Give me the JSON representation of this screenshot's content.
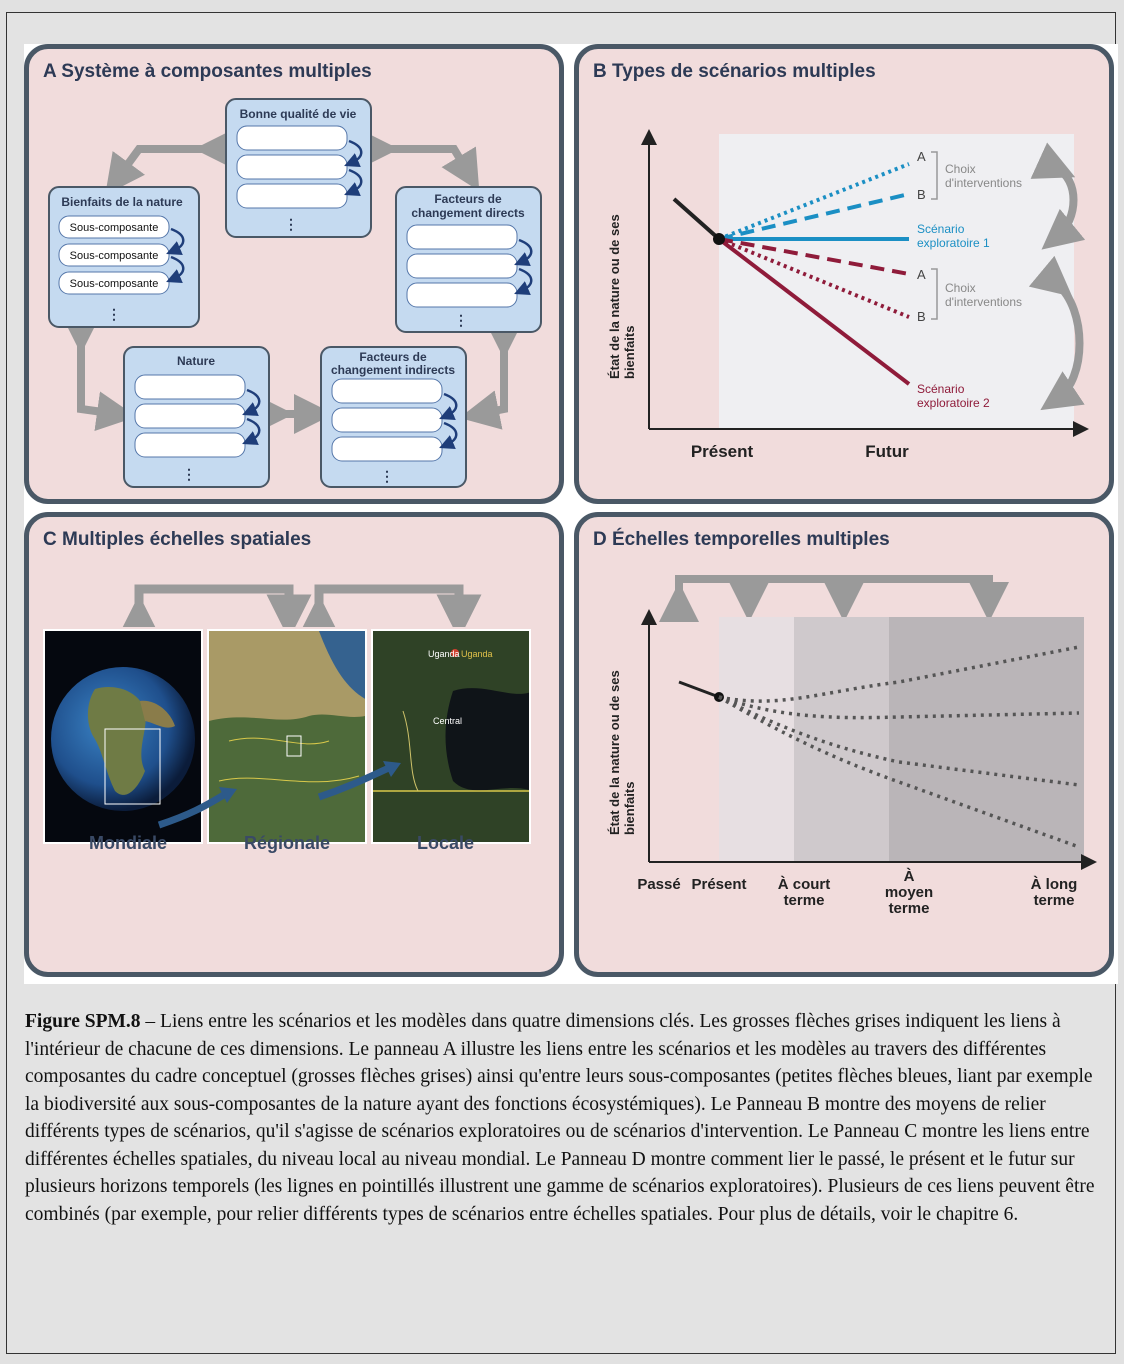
{
  "panel_a": {
    "title": "A Système à composantes multiples",
    "boxes": {
      "quality": "Bonne qualité de vie",
      "benefits": "Bienfaits de la nature",
      "direct": [
        "Facteurs de",
        "changement directs"
      ],
      "nature": "Nature",
      "indirect": [
        "Facteurs de",
        "changement indirects"
      ]
    },
    "subcomponent": "Sous-composante",
    "ellipsis": "⋮"
  },
  "panel_b": {
    "title": "B Types de scénarios multiples",
    "ylabel": [
      "État de la nature ou de ses",
      "bienfaits"
    ],
    "x_present": "Présent",
    "x_future": "Futur",
    "choice_label": [
      "Choix",
      "d'interventions"
    ],
    "letter_a": "A",
    "letter_b": "B",
    "scenario1": [
      "Scénario",
      "exploratoire 1"
    ],
    "scenario2": [
      "Scénario",
      "exploratoire 2"
    ],
    "colors": {
      "blue": "#1b8fc4",
      "red": "#8f1b3a",
      "grey": "#999999"
    }
  },
  "panel_c": {
    "title": "C Multiples échelles spatiales",
    "labels": [
      "Mondiale",
      "Régionale",
      "Locale"
    ],
    "map_labels": [
      "Uganda",
      "Uganda",
      "Central"
    ]
  },
  "panel_d": {
    "title": "D Échelles temporelles multiples",
    "ylabel": [
      "État de la nature ou de ses",
      "bienfaits"
    ],
    "x_labels": {
      "past": "Passé",
      "present": "Présent",
      "short": [
        "À court",
        "terme"
      ],
      "medium": [
        "À",
        "moyen",
        "terme"
      ],
      "long": [
        "À long",
        "terme"
      ]
    }
  },
  "caption": {
    "label": "Figure SPM.8",
    "text": " – Liens entre les scénarios et les modèles dans quatre dimensions clés. Les grosses flèches grises indiquent les liens à l'intérieur de chacune de ces dimensions. Le panneau A illustre les liens entre les scénarios et les modèles au travers des différentes composantes du cadre conceptuel (grosses flèches grises) ainsi qu'entre leurs sous-composantes (petites flèches bleues, liant par exemple la biodiversité aux sous-composantes de la nature ayant des fonctions écosystémiques). Le Panneau B montre des moyens de relier différents types de scénarios, qu'il s'agisse de scénarios exploratoires ou de scénarios d'intervention. Le Panneau C montre les liens entre différentes échelles spatiales, du niveau local au niveau mondial. Le Panneau D montre comment lier le passé, le présent et le futur sur plusieurs horizons temporels (les lignes en pointillés illustrent une gamme de scénarios exploratoires). Plusieurs de ces liens peuvent être combinés (par exemple, pour relier différents types de scénarios entre échelles spatiales. Pour plus de détails, voir le chapitre 6."
  }
}
